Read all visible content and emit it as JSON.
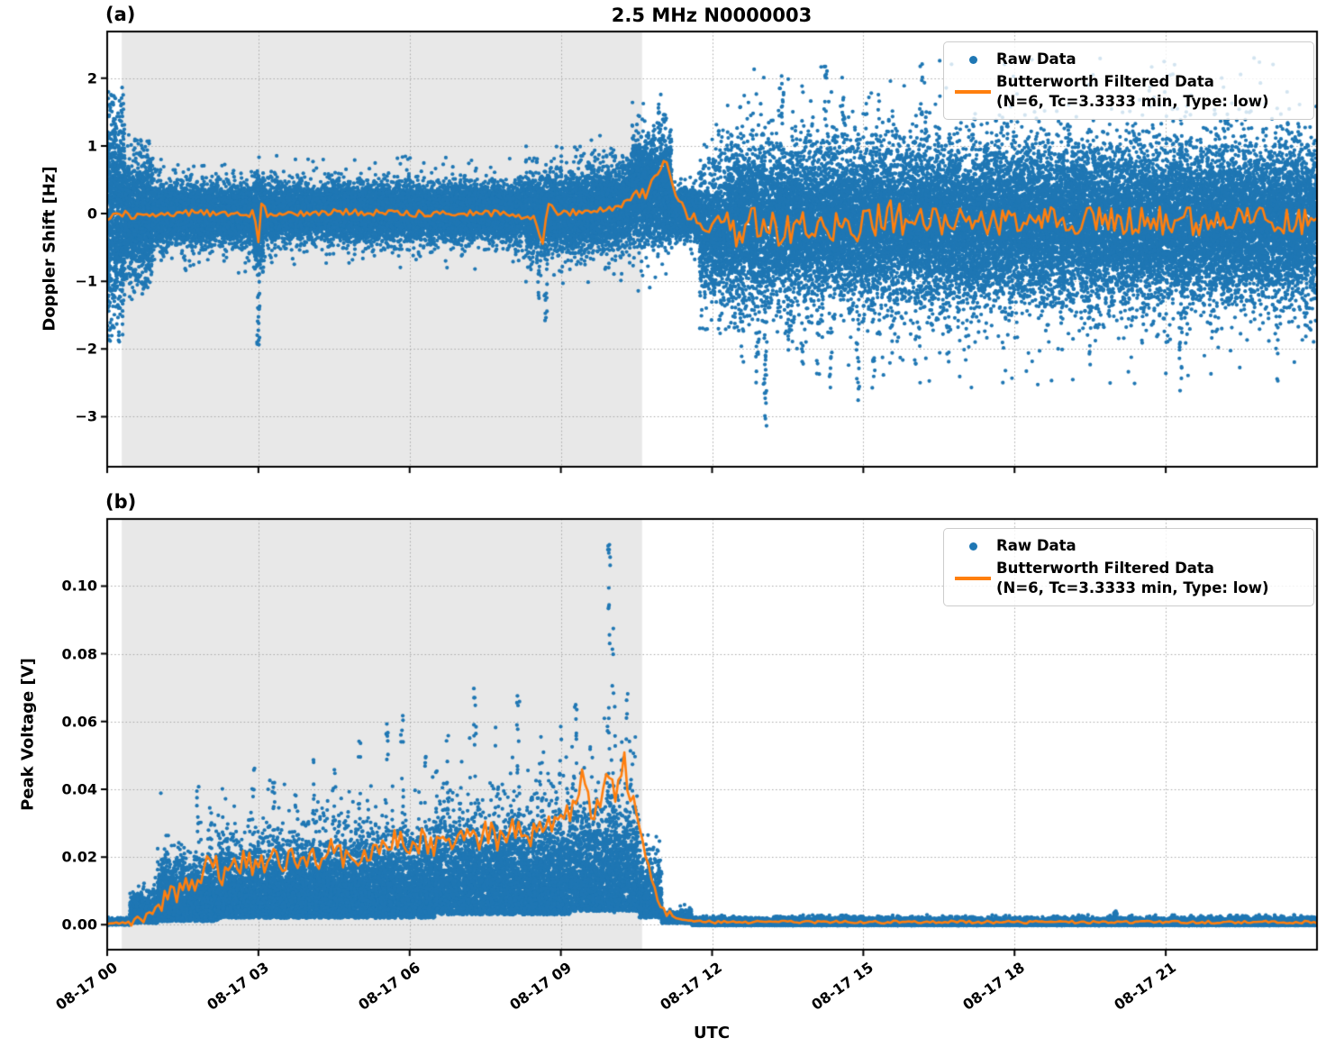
{
  "styles": {
    "raw_color": "#1f77b4",
    "filtered_color": "#ff7f0e",
    "shade_color": "#e8e8e8",
    "grid_color": "#a8a8a8",
    "spine_color": "#000000"
  },
  "legend": {
    "raw": "Raw Data",
    "filtered_line1": "Butterworth Filtered Data",
    "filtered_line2": "(N=6, Tc=3.3333 min, Type: low)"
  },
  "chart_data": [
    {
      "type": "scatter",
      "panel_label": "(a)",
      "title": "2.5 MHz N0000003",
      "ylabel": "Doppler Shift [Hz]",
      "xlabel": "",
      "x_unit": "hours since 08-17 00:00 UTC",
      "xlim_hours": [
        0,
        24
      ],
      "ylim": [
        -3.74,
        2.69
      ],
      "ytick_values": [
        2,
        1,
        0,
        -1,
        -2,
        -3
      ],
      "ytick_labels": [
        "2",
        "1",
        "0",
        "−1",
        "−2",
        "−3"
      ],
      "xtick_hours": [
        0,
        3,
        6,
        9,
        12,
        15,
        18,
        21
      ],
      "xtick_labels": [
        "08-17 00",
        "08-17 03",
        "08-17 06",
        "08-17 09",
        "08-17 12",
        "08-17 15",
        "08-17 18",
        "08-17 21"
      ],
      "grid": "dotted",
      "legend_position": "upper right",
      "shaded_region_hours": [
        0.29,
        10.61
      ],
      "raw_scatter_profile": [
        {
          "t0": 0.0,
          "t1": 0.35,
          "center": 0.0,
          "sigma": 0.75,
          "max_dev": 1.9,
          "rate": 2600
        },
        {
          "t0": 0.35,
          "t1": 0.9,
          "center": -0.05,
          "sigma": 0.42,
          "max_dev": 1.25,
          "rate": 2200
        },
        {
          "t0": 0.9,
          "t1": 2.9,
          "center": 0.0,
          "sigma": 0.21,
          "max_dev": 0.95,
          "rate": 2000
        },
        {
          "t0": 2.9,
          "t1": 3.1,
          "center": -0.1,
          "sigma": 0.3,
          "max_dev": 1.0,
          "rate": 2200
        },
        {
          "t0": 3.1,
          "t1": 8.3,
          "center": 0.02,
          "sigma": 0.2,
          "max_dev": 0.85,
          "rate": 2000
        },
        {
          "t0": 8.3,
          "t1": 9.6,
          "center": 0.0,
          "sigma": 0.28,
          "max_dev": 1.1,
          "rate": 2000
        },
        {
          "t0": 9.6,
          "t1": 10.4,
          "center": 0.1,
          "sigma": 0.3,
          "max_dev": 1.15,
          "rate": 2000
        },
        {
          "t0": 10.4,
          "t1": 11.2,
          "center": 0.35,
          "sigma": 0.38,
          "max_dev": 1.5,
          "rate": 2200
        },
        {
          "t0": 11.2,
          "t1": 11.75,
          "center": 0.0,
          "sigma": 0.18,
          "max_dev": 0.7,
          "rate": 1800
        },
        {
          "t0": 11.75,
          "t1": 12.3,
          "center": -0.25,
          "sigma": 0.5,
          "max_dev": 1.6,
          "rate": 1800
        },
        {
          "t0": 12.3,
          "t1": 24.0,
          "center": -0.15,
          "sigma": 0.55,
          "max_dev": 2.45,
          "rate": 2200
        }
      ],
      "raw_outlier_streaks": [
        {
          "t": 3.0,
          "y0": -1.97,
          "y1": -0.45,
          "n": 26
        },
        {
          "t": 8.55,
          "y0": -1.25,
          "y1": -0.5,
          "n": 12
        },
        {
          "t": 8.7,
          "y0": -1.6,
          "y1": -0.5,
          "n": 16
        },
        {
          "t": 10.95,
          "y0": 1.05,
          "y1": 1.62,
          "n": 14
        },
        {
          "t": 11.05,
          "y0": 1.0,
          "y1": 1.5,
          "n": 10
        },
        {
          "t": 12.6,
          "y0": -2.2,
          "y1": -1.3,
          "n": 10
        },
        {
          "t": 12.9,
          "y0": -2.6,
          "y1": -1.4,
          "n": 12
        },
        {
          "t": 13.05,
          "y0": -3.45,
          "y1": -1.5,
          "n": 20
        },
        {
          "t": 13.5,
          "y0": -2.15,
          "y1": -1.5,
          "n": 6
        },
        {
          "t": 13.8,
          "y0": -2.3,
          "y1": -1.5,
          "n": 6
        },
        {
          "t": 14.1,
          "y0": -2.45,
          "y1": -1.6,
          "n": 6
        },
        {
          "t": 14.35,
          "y0": -2.6,
          "y1": -1.7,
          "n": 8
        },
        {
          "t": 14.9,
          "y0": -2.85,
          "y1": -1.4,
          "n": 14
        },
        {
          "t": 15.2,
          "y0": -2.5,
          "y1": -1.3,
          "n": 10
        },
        {
          "t": 15.55,
          "y0": -2.1,
          "y1": -1.2,
          "n": 10
        },
        {
          "t": 16.05,
          "y0": -2.35,
          "y1": -1.2,
          "n": 10
        },
        {
          "t": 13.4,
          "y0": 1.3,
          "y1": 2.2,
          "n": 10
        },
        {
          "t": 14.25,
          "y0": 1.3,
          "y1": 2.25,
          "n": 12
        },
        {
          "t": 14.6,
          "y0": 1.3,
          "y1": 2.1,
          "n": 8
        },
        {
          "t": 16.15,
          "y0": 1.2,
          "y1": 2.25,
          "n": 10
        },
        {
          "t": 19.5,
          "y0": -2.3,
          "y1": -1.2,
          "n": 8
        },
        {
          "t": 21.3,
          "y0": -2.65,
          "y1": -1.3,
          "n": 12
        },
        {
          "t": 23.2,
          "y0": -2.5,
          "y1": -1.3,
          "n": 8
        }
      ],
      "filtered_line_anchors": [
        [
          0,
          -0.08
        ],
        [
          0.2,
          0.02
        ],
        [
          0.5,
          -0.03
        ],
        [
          1.0,
          0.0
        ],
        [
          2.0,
          0.01
        ],
        [
          2.9,
          0.0
        ],
        [
          3.0,
          -0.42
        ],
        [
          3.06,
          0.18
        ],
        [
          3.15,
          0.0
        ],
        [
          4.0,
          0.01
        ],
        [
          5.0,
          0.02
        ],
        [
          6.0,
          0.0
        ],
        [
          7.0,
          0.02
        ],
        [
          8.0,
          0.0
        ],
        [
          8.5,
          -0.08
        ],
        [
          8.62,
          -0.5
        ],
        [
          8.75,
          0.12
        ],
        [
          9.0,
          0.0
        ],
        [
          9.5,
          0.03
        ],
        [
          10.0,
          0.06
        ],
        [
          10.3,
          0.18
        ],
        [
          10.5,
          0.32
        ],
        [
          10.7,
          0.28
        ],
        [
          10.85,
          0.5
        ],
        [
          11.0,
          0.75
        ],
        [
          11.08,
          0.88
        ],
        [
          11.2,
          0.45
        ],
        [
          11.35,
          0.15
        ],
        [
          11.5,
          0.02
        ],
        [
          11.7,
          -0.05
        ],
        [
          11.9,
          -0.2
        ],
        [
          12.1,
          -0.1
        ],
        [
          12.4,
          -0.25
        ],
        [
          13.0,
          -0.12
        ],
        [
          13.3,
          -0.3
        ],
        [
          14.0,
          -0.18
        ],
        [
          15.0,
          -0.2
        ],
        [
          15.5,
          -0.05
        ],
        [
          16.0,
          -0.12
        ],
        [
          17.0,
          -0.08
        ],
        [
          18.0,
          -0.12
        ],
        [
          19.0,
          -0.08
        ],
        [
          20.0,
          -0.12
        ],
        [
          21.0,
          -0.1
        ],
        [
          22.0,
          -0.12
        ],
        [
          23.0,
          -0.08
        ],
        [
          24,
          -0.1
        ]
      ],
      "filtered_line_noise": [
        [
          0,
          10.2,
          0.05
        ],
        [
          10.2,
          11.5,
          0.07
        ],
        [
          11.5,
          12.2,
          0.1
        ],
        [
          12.2,
          16.0,
          0.26
        ],
        [
          16.0,
          24.0,
          0.21
        ]
      ]
    },
    {
      "type": "scatter",
      "panel_label": "(b)",
      "title": "",
      "ylabel": "Peak Voltage [V]",
      "xlabel": "UTC",
      "x_unit": "hours since 08-17 00:00 UTC",
      "xlim_hours": [
        0,
        24
      ],
      "ylim": [
        -0.00735,
        0.1198
      ],
      "ytick_values": [
        0.1,
        0.08,
        0.06,
        0.04,
        0.02,
        0.0
      ],
      "ytick_labels": [
        "0.10",
        "0.08",
        "0.06",
        "0.04",
        "0.02",
        "0.00"
      ],
      "xtick_hours": [
        0,
        3,
        6,
        9,
        12,
        15,
        18,
        21
      ],
      "xtick_labels": [
        "08-17 00",
        "08-17 03",
        "08-17 06",
        "08-17 09",
        "08-17 12",
        "08-17 15",
        "08-17 18",
        "08-17 21"
      ],
      "grid": "dotted",
      "legend_position": "upper right",
      "shaded_region_hours": [
        0.29,
        10.61
      ],
      "raw_scatter_profile": [
        {
          "t0": 0.0,
          "t1": 0.45,
          "lo": 0.0,
          "sigma": 0.0008,
          "max": 0.004,
          "rate": 1200
        },
        {
          "t0": 0.45,
          "t1": 1.0,
          "lo": 0.0005,
          "sigma": 0.004,
          "max": 0.018,
          "rate": 1500
        },
        {
          "t0": 1.0,
          "t1": 2.2,
          "lo": 0.001,
          "sigma": 0.008,
          "max": 0.042,
          "rate": 1700
        },
        {
          "t0": 2.2,
          "t1": 4.0,
          "lo": 0.002,
          "sigma": 0.01,
          "max": 0.05,
          "rate": 1700
        },
        {
          "t0": 4.0,
          "t1": 6.5,
          "lo": 0.002,
          "sigma": 0.011,
          "max": 0.058,
          "rate": 1700
        },
        {
          "t0": 6.5,
          "t1": 9.2,
          "lo": 0.003,
          "sigma": 0.013,
          "max": 0.07,
          "rate": 1700
        },
        {
          "t0": 9.2,
          "t1": 10.55,
          "lo": 0.004,
          "sigma": 0.014,
          "max": 0.08,
          "rate": 1700
        },
        {
          "t0": 10.55,
          "t1": 11.0,
          "lo": 0.002,
          "sigma": 0.008,
          "max": 0.04,
          "rate": 1500
        },
        {
          "t0": 11.0,
          "t1": 11.6,
          "lo": 0.0005,
          "sigma": 0.0015,
          "max": 0.006,
          "rate": 1400
        },
        {
          "t0": 11.6,
          "t1": 24.0,
          "lo": -0.0002,
          "sigma": 0.0009,
          "max": 0.003,
          "rate": 1600
        }
      ],
      "raw_outlier_streaks": [
        {
          "t": 1.8,
          "y_top": 0.042,
          "n": 10
        },
        {
          "t": 2.05,
          "y_top": 0.042,
          "n": 12
        },
        {
          "t": 2.55,
          "y_top": 0.038,
          "n": 8
        },
        {
          "t": 2.9,
          "y_top": 0.048,
          "n": 12
        },
        {
          "t": 3.3,
          "y_top": 0.046,
          "n": 10
        },
        {
          "t": 3.75,
          "y_top": 0.04,
          "n": 8
        },
        {
          "t": 4.1,
          "y_top": 0.052,
          "n": 10
        },
        {
          "t": 4.5,
          "y_top": 0.048,
          "n": 8
        },
        {
          "t": 5.0,
          "y_top": 0.055,
          "n": 10
        },
        {
          "t": 5.55,
          "y_top": 0.065,
          "n": 12
        },
        {
          "t": 5.85,
          "y_top": 0.062,
          "n": 10
        },
        {
          "t": 6.3,
          "y_top": 0.05,
          "n": 8
        },
        {
          "t": 6.75,
          "y_top": 0.058,
          "n": 10
        },
        {
          "t": 7.3,
          "y_top": 0.07,
          "n": 12
        },
        {
          "t": 7.7,
          "y_top": 0.06,
          "n": 8
        },
        {
          "t": 8.15,
          "y_top": 0.068,
          "n": 12
        },
        {
          "t": 8.6,
          "y_top": 0.06,
          "n": 10
        },
        {
          "t": 9.0,
          "y_top": 0.062,
          "n": 10
        },
        {
          "t": 9.3,
          "y_top": 0.066,
          "n": 10
        },
        {
          "t": 9.6,
          "y_top": 0.06,
          "n": 8
        },
        {
          "t": 9.95,
          "y_top": 0.114,
          "n": 26
        },
        {
          "t": 10.05,
          "y_top": 0.09,
          "n": 16
        },
        {
          "t": 10.3,
          "y_top": 0.07,
          "n": 12
        },
        {
          "t": 10.45,
          "y_top": 0.056,
          "n": 8
        },
        {
          "t": 20.0,
          "y_top": 0.004,
          "n": 14
        }
      ],
      "filtered_line_anchors": [
        [
          0,
          0.0004
        ],
        [
          0.5,
          0.0008
        ],
        [
          0.8,
          0.002
        ],
        [
          1.0,
          0.005
        ],
        [
          1.2,
          0.008
        ],
        [
          1.45,
          0.011
        ],
        [
          1.7,
          0.013
        ],
        [
          1.9,
          0.015
        ],
        [
          2.05,
          0.021
        ],
        [
          2.25,
          0.013
        ],
        [
          2.5,
          0.016
        ],
        [
          2.75,
          0.019
        ],
        [
          3.0,
          0.017
        ],
        [
          3.3,
          0.02
        ],
        [
          3.6,
          0.018
        ],
        [
          3.9,
          0.021
        ],
        [
          4.2,
          0.019
        ],
        [
          4.5,
          0.022
        ],
        [
          4.8,
          0.02
        ],
        [
          5.1,
          0.022
        ],
        [
          5.4,
          0.02
        ],
        [
          5.7,
          0.026
        ],
        [
          6.0,
          0.022
        ],
        [
          6.3,
          0.025
        ],
        [
          6.6,
          0.023
        ],
        [
          6.9,
          0.026
        ],
        [
          7.2,
          0.024
        ],
        [
          7.5,
          0.027
        ],
        [
          7.8,
          0.025
        ],
        [
          8.1,
          0.028
        ],
        [
          8.4,
          0.026
        ],
        [
          8.7,
          0.029
        ],
        [
          9.0,
          0.03
        ],
        [
          9.25,
          0.033
        ],
        [
          9.45,
          0.045
        ],
        [
          9.6,
          0.035
        ],
        [
          9.8,
          0.034
        ],
        [
          9.95,
          0.048
        ],
        [
          10.1,
          0.037
        ],
        [
          10.25,
          0.05
        ],
        [
          10.35,
          0.036
        ],
        [
          10.5,
          0.034
        ],
        [
          10.62,
          0.025
        ],
        [
          10.75,
          0.016
        ],
        [
          10.9,
          0.008
        ],
        [
          11.05,
          0.004
        ],
        [
          11.3,
          0.0015
        ],
        [
          11.6,
          0.001
        ],
        [
          12.0,
          0.0008
        ],
        [
          24,
          0.0008
        ]
      ],
      "filtered_line_noise": [
        [
          0,
          0.45,
          0.0003
        ],
        [
          0.45,
          1.0,
          0.0015
        ],
        [
          1.0,
          10.55,
          0.004
        ],
        [
          10.55,
          11.2,
          0.0012
        ],
        [
          11.2,
          24.0,
          0.0004
        ]
      ]
    }
  ]
}
